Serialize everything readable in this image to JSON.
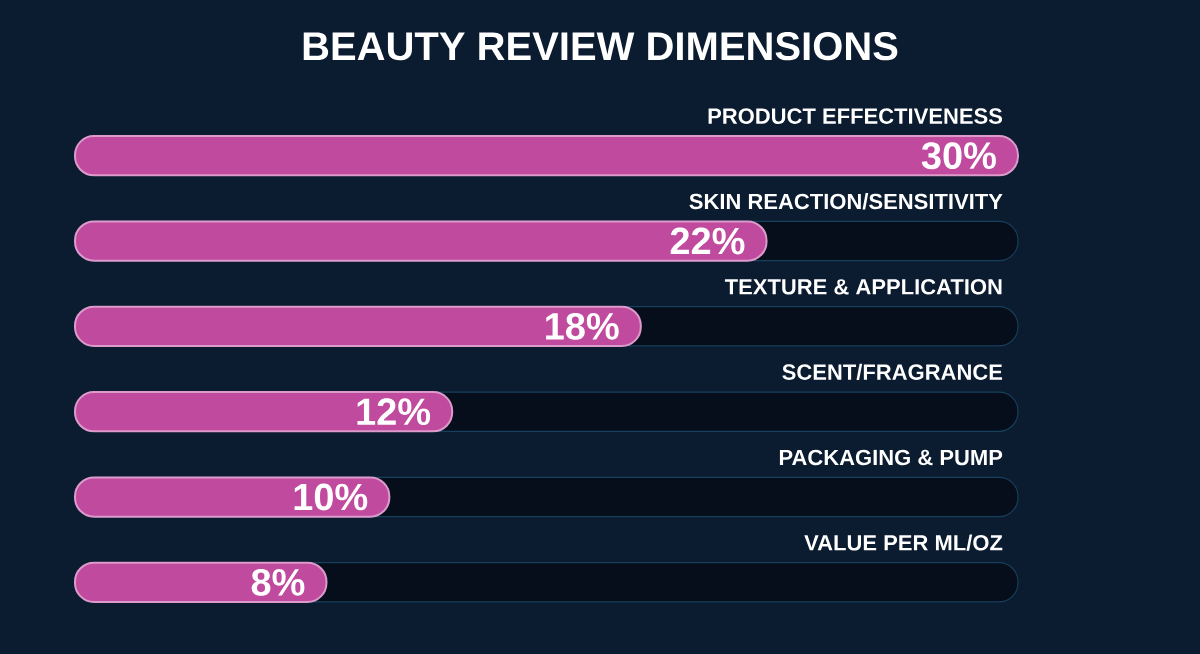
{
  "chart_data": {
    "type": "bar",
    "orientation": "horizontal",
    "title": "BEAUTY REVIEW DIMENSIONS",
    "categories": [
      "PRODUCT EFFECTIVENESS",
      "SKIN REACTION/SENSITIVITY",
      "TEXTURE & APPLICATION",
      "SCENT/FRAGRANCE",
      "PACKAGING & PUMP",
      "VALUE PER ML/OZ"
    ],
    "values": [
      30,
      22,
      18,
      12,
      10,
      8
    ],
    "value_labels": [
      "30%",
      "22%",
      "18%",
      "12%",
      "10%",
      "8%"
    ],
    "color": "#c04a9e",
    "xlim": [
      0,
      30
    ],
    "tick_labels": "y"
  }
}
